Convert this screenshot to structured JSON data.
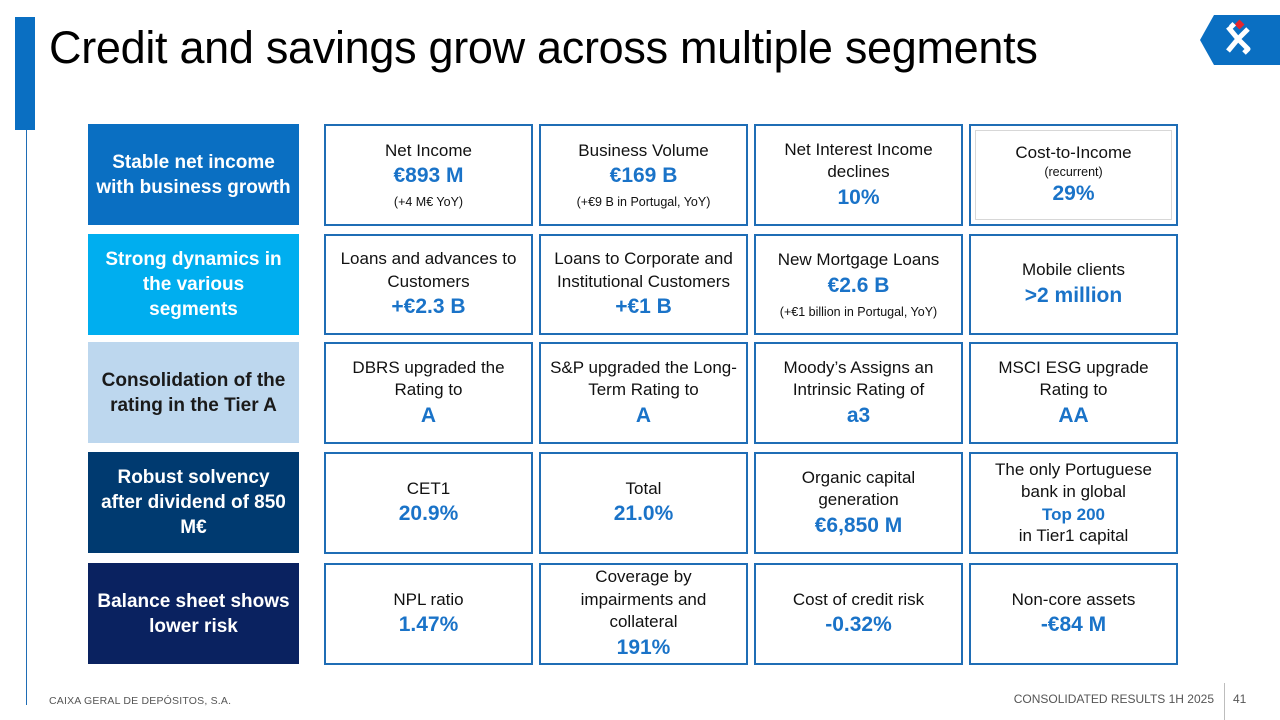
{
  "title": "Credit and savings grow across multiple segments",
  "colors": {
    "accent": "#0a6fc2",
    "value_blue": "#1a73c8",
    "border": "#1f6db5",
    "row1": "#0a6fc2",
    "row2": "#00aeef",
    "row3": "#bdd7ee",
    "row4": "#003a70",
    "row5": "#0a2260"
  },
  "logo": {
    "icon": "caixa-logo-icon"
  },
  "rows": [
    {
      "label": "Stable net income with business growth"
    },
    {
      "label": "Strong dynamics in the various segments"
    },
    {
      "label": "Consolidation of the rating in the Tier A"
    },
    {
      "label": "Robust solvency after dividend of 850 M€"
    },
    {
      "label": "Balance sheet shows lower risk"
    }
  ],
  "cards": {
    "r1c1": {
      "label": "Net Income",
      "value": "€893 M",
      "note": "(+4 M€ YoY)"
    },
    "r1c2": {
      "label": "Business Volume",
      "value": "€169 B",
      "note": "(+€9 B in Portugal, YoY)"
    },
    "r1c3": {
      "label": "Net Interest Income declines",
      "value": "10%"
    },
    "r1c4": {
      "label": "Cost-to-Income",
      "sub": "(recurrent)",
      "value": "29%"
    },
    "r2c1": {
      "label": "Loans and advances to Customers",
      "value": "+€2.3 B"
    },
    "r2c2": {
      "label": "Loans to Corporate and Institutional Customers",
      "value": "+€1 B"
    },
    "r2c3": {
      "label": "New Mortgage Loans",
      "value": "€2.6 B",
      "note": "(+€1 billion in Portugal, YoY)"
    },
    "r2c4": {
      "label": "Mobile clients",
      "value": ">2 million"
    },
    "r3c1": {
      "label": "DBRS upgraded the Rating to",
      "value": "A"
    },
    "r3c2": {
      "label": "S&P upgraded the Long-Term Rating to",
      "value": "A"
    },
    "r3c3": {
      "label": "Moody’s Assigns an Intrinsic Rating of",
      "value": "a3"
    },
    "r3c4": {
      "label": "MSCI ESG upgrade Rating to",
      "value": "AA"
    },
    "r4c1": {
      "label": "CET1",
      "value": "20.9%"
    },
    "r4c2": {
      "label": "Total",
      "value": "21.0%"
    },
    "r4c3": {
      "label": "Organic capital generation",
      "value": "€6,850 M"
    },
    "r4c4": {
      "label": "The only Portuguese bank in global",
      "value": "Top 200",
      "after": "in Tier1 capital"
    },
    "r5c1": {
      "label": "NPL ratio",
      "value": "1.47%"
    },
    "r5c2": {
      "label": "Coverage by impairments and collateral",
      "value": "191%"
    },
    "r5c3": {
      "label": "Cost of credit risk",
      "value": "-0.32%"
    },
    "r5c4": {
      "label": "Non-core assets",
      "value": "-€84 M"
    }
  },
  "footer": {
    "company": "CAIXA GERAL DE DEPÓSITOS, S.A.",
    "report": "CONSOLIDATED RESULTS 1H 2025",
    "page": "41"
  }
}
